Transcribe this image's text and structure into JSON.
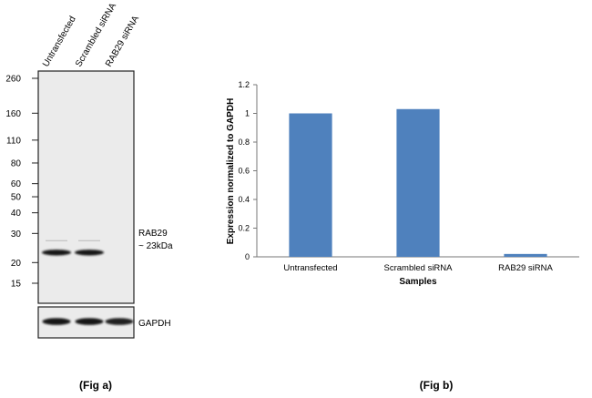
{
  "fig_a": {
    "lanes": [
      "Untransfected",
      "Scrambled siRNA",
      "RAB29 siRNA"
    ],
    "markers": [
      {
        "label": "260",
        "kda": 260
      },
      {
        "label": "160",
        "kda": 160
      },
      {
        "label": "110",
        "kda": 110
      },
      {
        "label": "80",
        "kda": 80
      },
      {
        "label": "60",
        "kda": 60
      },
      {
        "label": "50",
        "kda": 50
      },
      {
        "label": "40",
        "kda": 40
      },
      {
        "label": "30",
        "kda": 30
      },
      {
        "label": "20",
        "kda": 20
      },
      {
        "label": "15",
        "kda": 15
      }
    ],
    "target_name": "RAB29",
    "target_size": "~ 23kDa",
    "target_kda": 23,
    "target_band_intensity": [
      1.0,
      1.0,
      0.0
    ],
    "loading_control": "GAPDH",
    "loading_band_intensity": [
      1.0,
      1.0,
      0.95
    ],
    "caption": "(Fig a)"
  },
  "chart_data": {
    "type": "bar",
    "title": "",
    "categories": [
      "Untransfected",
      "Scrambled siRNA",
      "RAB29 siRNA"
    ],
    "values": [
      1.0,
      1.03,
      0.02
    ],
    "xlabel": "Samples",
    "ylabel": "Expression  normalized to GAPDH",
    "ylim": [
      0,
      1.2
    ],
    "yticks": [
      0,
      0.2,
      0.4,
      0.6,
      0.8,
      1,
      1.2
    ],
    "ytick_labels": [
      "0",
      "0.2",
      "0.4",
      "0.6",
      "0.8",
      "1",
      "1.2"
    ],
    "bar_color": "#4f81bd",
    "grid": false,
    "legend": "none"
  },
  "fig_b": {
    "caption": "(Fig b)"
  }
}
